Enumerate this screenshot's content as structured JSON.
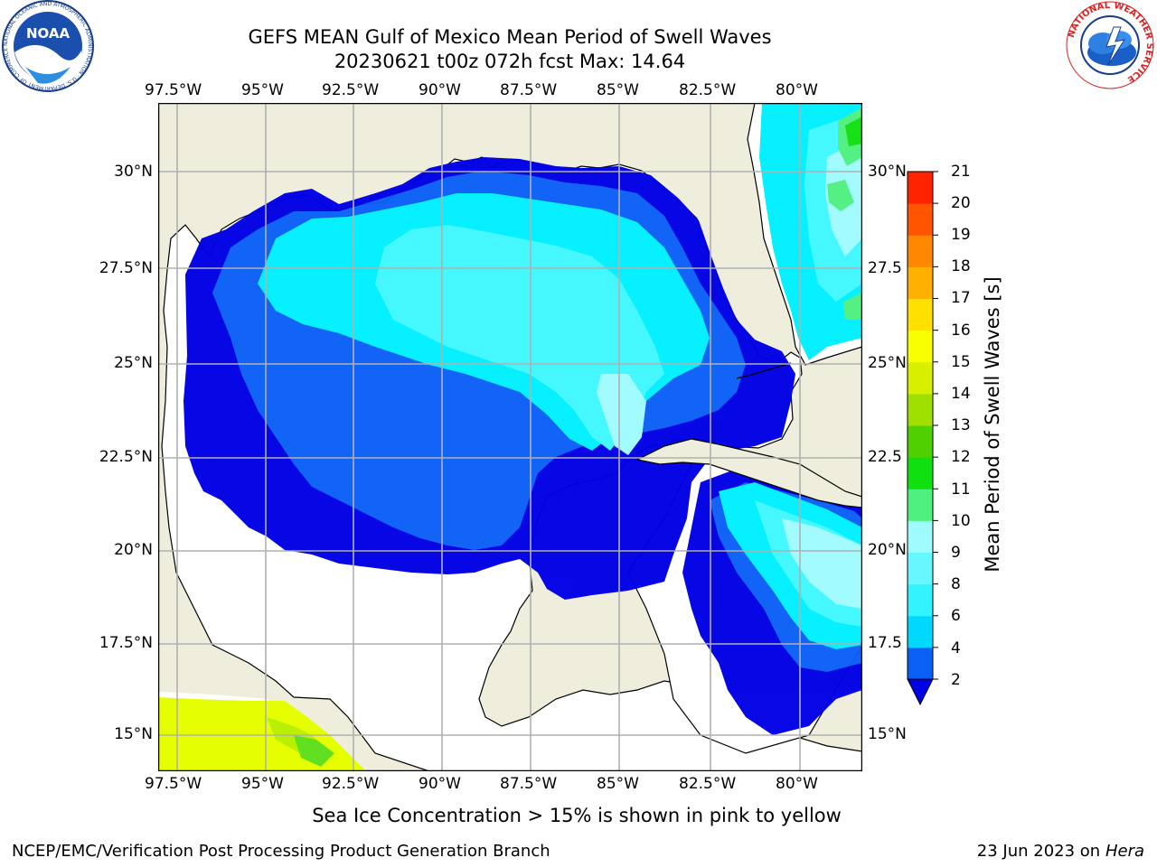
{
  "header": {
    "title": "GEFS MEAN Gulf of Mexico Mean Period of Swell Waves",
    "subtitle": "20230621 t00z 072h fcst   Max: 14.64"
  },
  "logos": {
    "left": {
      "name": "noaa-logo",
      "text": "NOAA",
      "ring_text": "NATIONAL OCEANIC AND ATMOSPHERIC ADMINISTRATION · U.S. DEPARTMENT OF COMMERCE"
    },
    "right": {
      "name": "nws-logo",
      "ring_text": "NATIONAL WEATHER SERVICE"
    }
  },
  "map": {
    "lon_labels": [
      "97.5°W",
      "95°W",
      "92.5°W",
      "90°W",
      "87.5°W",
      "85°W",
      "82.5°W",
      "80°W"
    ],
    "lat_labels_left": [
      "30°N",
      "27.5°N",
      "25°N",
      "22.5°N",
      "20°N",
      "17.5°N",
      "15°N"
    ],
    "lat_labels_right": [
      "30°N",
      "27.5",
      "25°N",
      "22.5",
      "20°N",
      "17.5",
      "15°N"
    ],
    "colors": {
      "land": "#efeedc",
      "ocean_no_swell": "#ffffff",
      "grid": "#b0b0b0",
      "coast": "#000000"
    }
  },
  "colorbar": {
    "label": "Mean Period of Swell Waves [s]",
    "tick_labels": [
      "2",
      "4",
      "6",
      "8",
      "9",
      "10",
      "11",
      "12",
      "13",
      "14",
      "15",
      "16",
      "17",
      "18",
      "19",
      "20",
      "21"
    ],
    "band_colors": [
      "#0a5ff5",
      "#00d8ff",
      "#33f3ff",
      "#66f7ff",
      "#a0fbff",
      "#50f080",
      "#10e010",
      "#50d000",
      "#a0e000",
      "#d8f000",
      "#f8ff00",
      "#ffe000",
      "#ffb000",
      "#ff8800",
      "#ff5500",
      "#ff2200"
    ],
    "under_color": "#0000e6"
  },
  "footer": {
    "note": "Sea Ice Concentration > 15% is shown in pink to yellow",
    "credit": "NCEP/EMC/Verification Post Processing Product Generation Branch",
    "date": "23 Jun 2023 on",
    "machine": "Hera"
  }
}
